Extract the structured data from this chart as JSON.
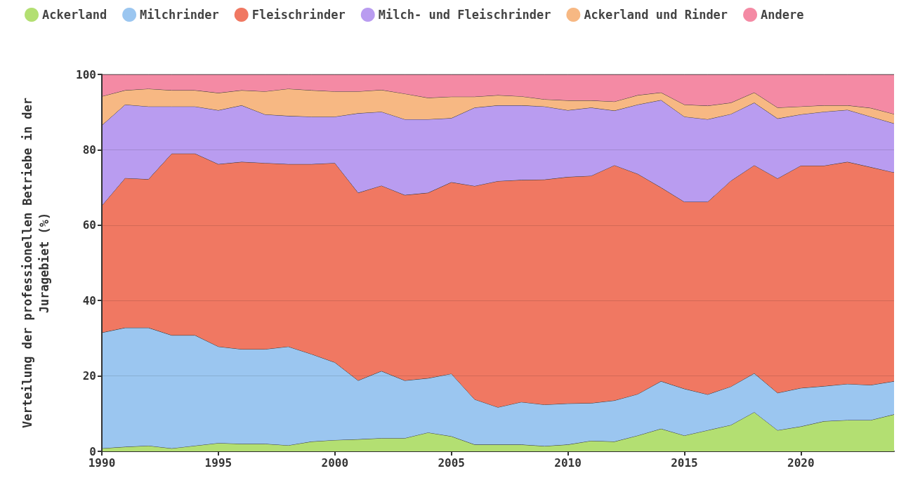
{
  "chart_data": {
    "type": "area",
    "stacked": true,
    "ylabel": "Verteilung der professionellen Betriebe in der Juragebiet (%)",
    "x": [
      1990,
      1991,
      1992,
      1993,
      1994,
      1995,
      1996,
      1997,
      1998,
      1999,
      2000,
      2001,
      2002,
      2003,
      2004,
      2005,
      2006,
      2007,
      2008,
      2009,
      2010,
      2011,
      2012,
      2013,
      2014,
      2015,
      2016,
      2017,
      2018,
      2019,
      2020,
      2021,
      2022,
      2023,
      2024
    ],
    "xlim": [
      1990,
      2024
    ],
    "xticks": [
      1990,
      1995,
      2000,
      2005,
      2010,
      2015,
      2020
    ],
    "ylim": [
      0,
      100
    ],
    "yticks": [
      0,
      20,
      40,
      60,
      80,
      100
    ],
    "grid": "y",
    "legend": "top left",
    "series": [
      {
        "name": "Ackerland",
        "color": "#b3df72",
        "values": [
          0.8,
          1.2,
          1.5,
          0.8,
          1.5,
          2.2,
          2.0,
          2.0,
          1.6,
          2.6,
          3.0,
          3.2,
          3.5,
          3.5,
          5.0,
          4.0,
          1.8,
          1.8,
          1.8,
          1.4,
          1.8,
          2.8,
          2.6,
          4.2,
          6.0,
          4.2,
          5.6,
          7.0,
          10.4,
          5.6,
          6.6,
          8.0,
          8.3,
          8.3,
          9.8
        ]
      },
      {
        "name": "Milchrinder",
        "color": "#9bc6f0",
        "values": [
          30.7,
          31.6,
          31.3,
          30.0,
          29.3,
          25.6,
          25.1,
          25.1,
          26.2,
          23.2,
          20.6,
          15.6,
          17.8,
          15.3,
          14.4,
          16.6,
          12.0,
          9.9,
          11.3,
          11.0,
          10.9,
          10.0,
          10.9,
          11.0,
          12.6,
          12.4,
          9.5,
          10.2,
          10.3,
          9.9,
          10.2,
          9.3,
          9.6,
          9.3,
          8.8
        ]
      },
      {
        "name": "Fleischrinder",
        "color": "#f07862",
        "values": [
          33.7,
          39.7,
          39.4,
          48.2,
          48.2,
          48.4,
          49.7,
          49.4,
          48.4,
          50.4,
          52.9,
          49.8,
          49.2,
          49.2,
          49.2,
          50.8,
          56.6,
          60.0,
          58.9,
          59.7,
          60.1,
          60.3,
          62.4,
          58.4,
          51.4,
          49.6,
          51.1,
          54.6,
          55.2,
          56.9,
          59.0,
          58.5,
          58.9,
          57.8,
          55.4
        ]
      },
      {
        "name": "Milch- und Fleischrinder",
        "color": "#b99cf0",
        "values": [
          21.3,
          19.5,
          19.3,
          12.5,
          12.5,
          14.3,
          15.0,
          12.9,
          12.8,
          12.6,
          12.3,
          21.1,
          19.6,
          20.1,
          19.5,
          17.0,
          20.8,
          20.1,
          19.8,
          19.4,
          17.7,
          18.1,
          14.5,
          18.4,
          23.2,
          22.6,
          21.9,
          17.7,
          16.6,
          15.9,
          13.6,
          14.3,
          13.8,
          13.4,
          13.0
        ]
      },
      {
        "name": "Ackerland und Rinder",
        "color": "#f7b883",
        "values": [
          7.7,
          3.8,
          4.7,
          4.3,
          4.3,
          4.6,
          4.0,
          6.1,
          7.2,
          7.0,
          6.7,
          5.8,
          5.8,
          6.8,
          5.7,
          5.7,
          2.9,
          2.7,
          2.4,
          1.9,
          2.6,
          1.9,
          2.4,
          2.5,
          2.0,
          3.2,
          3.6,
          3.0,
          2.7,
          2.9,
          2.1,
          1.7,
          1.2,
          2.3,
          2.5
        ]
      },
      {
        "name": "Andere",
        "color": "#f48aa4",
        "values": [
          5.8,
          4.2,
          3.8,
          4.2,
          4.2,
          4.9,
          4.2,
          4.5,
          3.8,
          4.2,
          4.5,
          4.5,
          4.1,
          5.1,
          6.2,
          5.9,
          5.9,
          5.5,
          5.8,
          6.6,
          6.9,
          6.9,
          7.2,
          5.5,
          4.8,
          8.0,
          8.3,
          7.5,
          4.8,
          8.8,
          8.5,
          8.2,
          8.2,
          8.9,
          10.5
        ]
      }
    ]
  }
}
